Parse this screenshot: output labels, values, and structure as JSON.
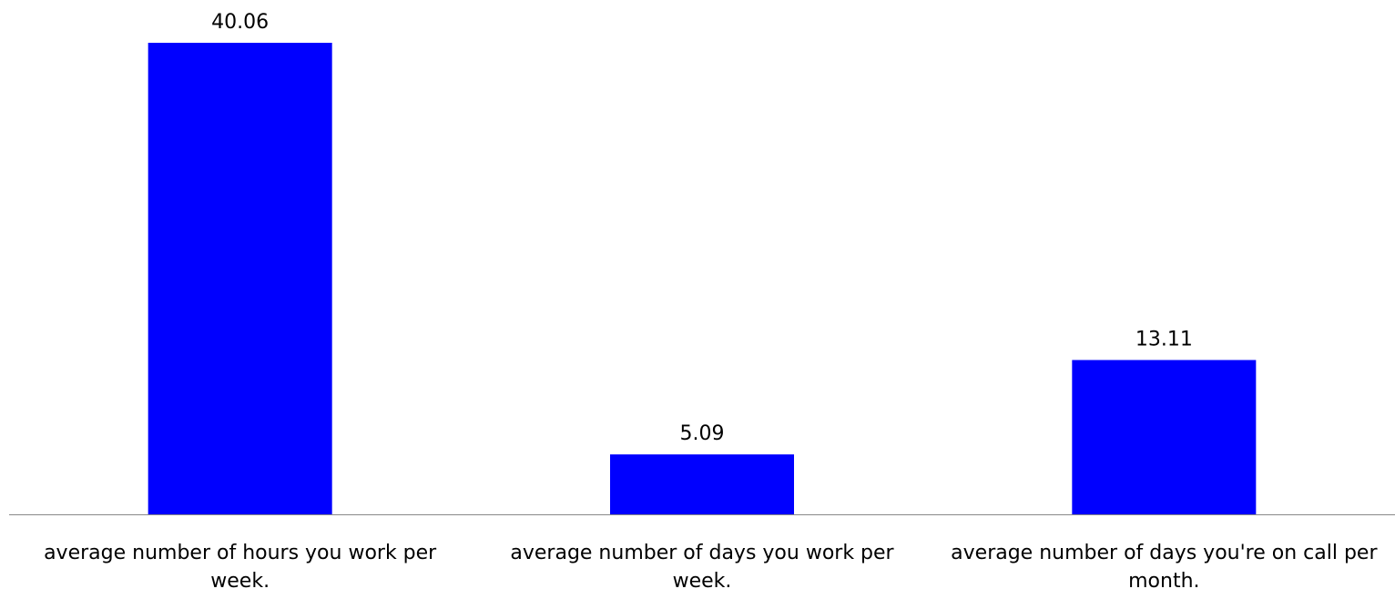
{
  "chart_data": {
    "type": "bar",
    "categories": [
      [
        "average number of hours you work per",
        "week."
      ],
      [
        "average number of days you work per",
        "week."
      ],
      [
        "average number of days you're on call per",
        "month."
      ]
    ],
    "values": [
      40.06,
      5.09,
      13.11
    ],
    "value_labels": [
      "40.06",
      "5.09",
      "13.11"
    ],
    "title": "",
    "xlabel": "",
    "ylabel": "",
    "ylim": [
      0,
      40.06
    ],
    "grid": false,
    "legend": "none",
    "bar_color": "#0000FF",
    "axis_color": "#888888"
  }
}
